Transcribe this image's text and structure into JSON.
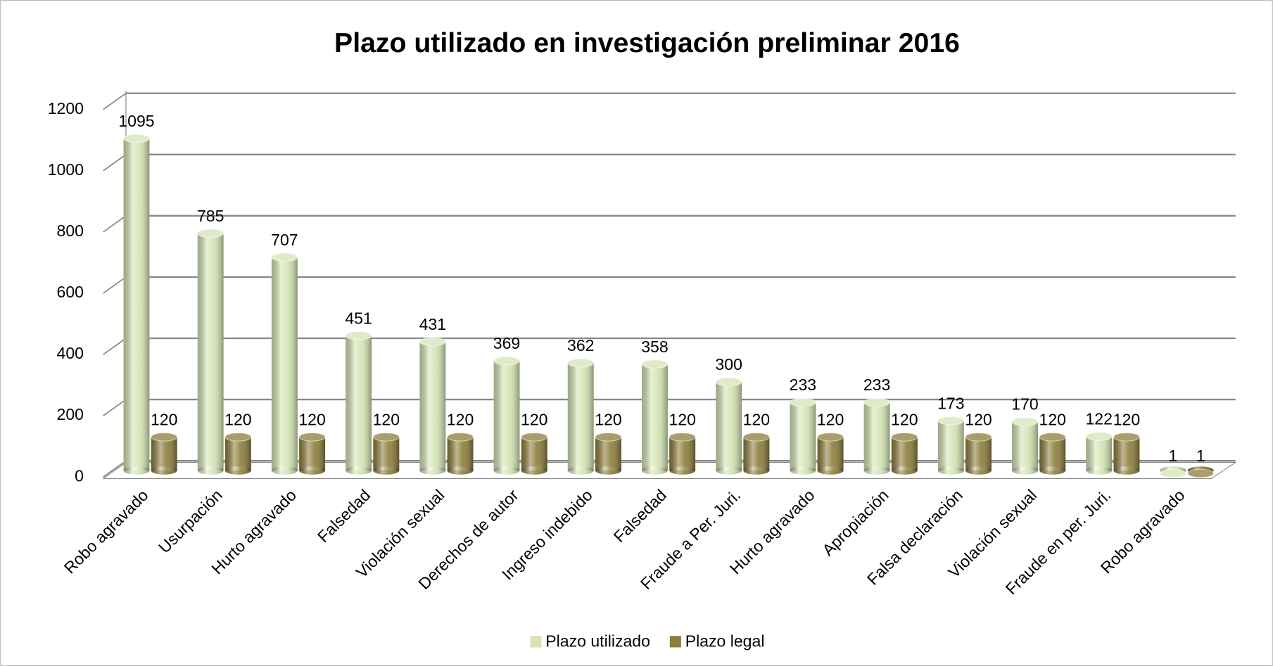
{
  "chart_data": {
    "type": "bar",
    "title": "Plazo utilizado en investigación preliminar 2016",
    "categories": [
      "Robo agravado",
      "Usurpación",
      "Hurto agravado",
      "Falsedad",
      "Violación sexual",
      "Derechos de autor",
      "Ingreso indebido",
      "Falsedad",
      "Fraude a Per. Juri.",
      "Hurto agravado",
      "Apropiación",
      "Falsa declaración",
      "Violación sexual",
      "Fraude en per. Juri.",
      "Robo agravado"
    ],
    "series": [
      {
        "name": "Plazo utilizado",
        "color": "#d4e4b4",
        "values": [
          1095,
          785,
          707,
          451,
          431,
          369,
          362,
          358,
          300,
          233,
          233,
          173,
          170,
          122,
          1
        ]
      },
      {
        "name": "Plazo legal",
        "color": "#8c7d3a",
        "values": [
          120,
          120,
          120,
          120,
          120,
          120,
          120,
          120,
          120,
          120,
          120,
          120,
          120,
          120,
          1
        ]
      }
    ],
    "ylim": [
      0,
      1200
    ],
    "yticks": [
      0,
      200,
      400,
      600,
      800,
      1000,
      1200
    ],
    "grid": true,
    "legend": "bottom"
  }
}
